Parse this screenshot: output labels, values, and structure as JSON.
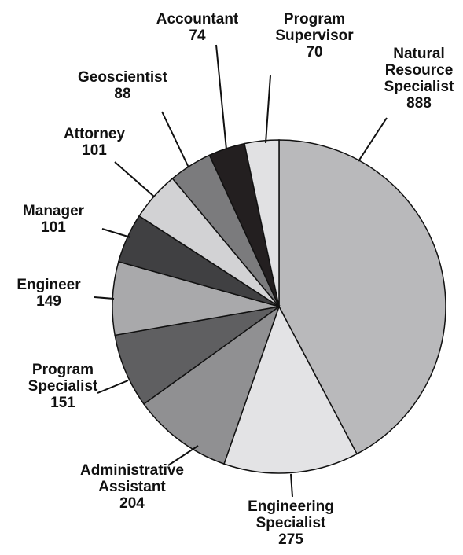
{
  "chart_data": {
    "type": "pie",
    "categories": [
      "Natural Resource Specialist",
      "Engineering Specialist",
      "Administrative Assistant",
      "Program Specialist",
      "Engineer",
      "Manager",
      "Attorney",
      "Geoscientist",
      "Accountant",
      "Program Supervisor"
    ],
    "values": [
      888,
      275,
      204,
      151,
      149,
      101,
      101,
      88,
      74,
      70
    ],
    "colors": [
      "#b9b9bb",
      "#e3e3e5",
      "#909092",
      "#5f5f61",
      "#a9a9ab",
      "#404042",
      "#d2d2d4",
      "#7b7b7d",
      "#231f20",
      "#e1e1e3"
    ]
  }
}
